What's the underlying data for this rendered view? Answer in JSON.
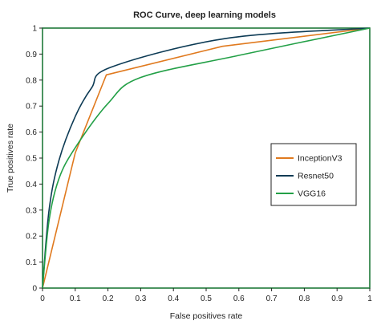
{
  "chart_data": {
    "type": "line",
    "title": "ROC Curve, deep learning models",
    "xlabel": "False positives rate",
    "ylabel": "True positives rate",
    "xlim": [
      0,
      1
    ],
    "ylim": [
      0,
      1
    ],
    "x_ticks": [
      "0",
      "0.1",
      "0.2",
      "0.3",
      "0.4",
      "0.5",
      "0.6",
      "0.7",
      "0.8",
      "0.9",
      "1"
    ],
    "y_ticks": [
      "0",
      "0.1",
      "0.2",
      "0.3",
      "0.4",
      "0.5",
      "0.6",
      "0.7",
      "0.8",
      "0.9",
      "1"
    ],
    "grid": false,
    "legend_position": "right",
    "series": [
      {
        "name": "InceptionV3",
        "color": "#e07a1f",
        "points": [
          [
            0,
            0
          ],
          [
            0.1,
            0.52
          ],
          [
            0.195,
            0.82
          ],
          [
            0.55,
            0.93
          ],
          [
            1,
            1
          ]
        ]
      },
      {
        "name": "Resnet50",
        "color": "#0d3b55",
        "points": [
          [
            0,
            0
          ],
          [
            0.02,
            0.3
          ],
          [
            0.05,
            0.49
          ],
          [
            0.1,
            0.66
          ],
          [
            0.15,
            0.77
          ],
          [
            0.21,
            0.85
          ],
          [
            0.56,
            0.96
          ],
          [
            1,
            1
          ]
        ]
      },
      {
        "name": "VGG16",
        "color": "#23a047",
        "points": [
          [
            0,
            0
          ],
          [
            0.02,
            0.26
          ],
          [
            0.05,
            0.42
          ],
          [
            0.1,
            0.54
          ],
          [
            0.2,
            0.71
          ],
          [
            0.3,
            0.81
          ],
          [
            0.6,
            0.895
          ],
          [
            1,
            1
          ]
        ]
      }
    ]
  }
}
